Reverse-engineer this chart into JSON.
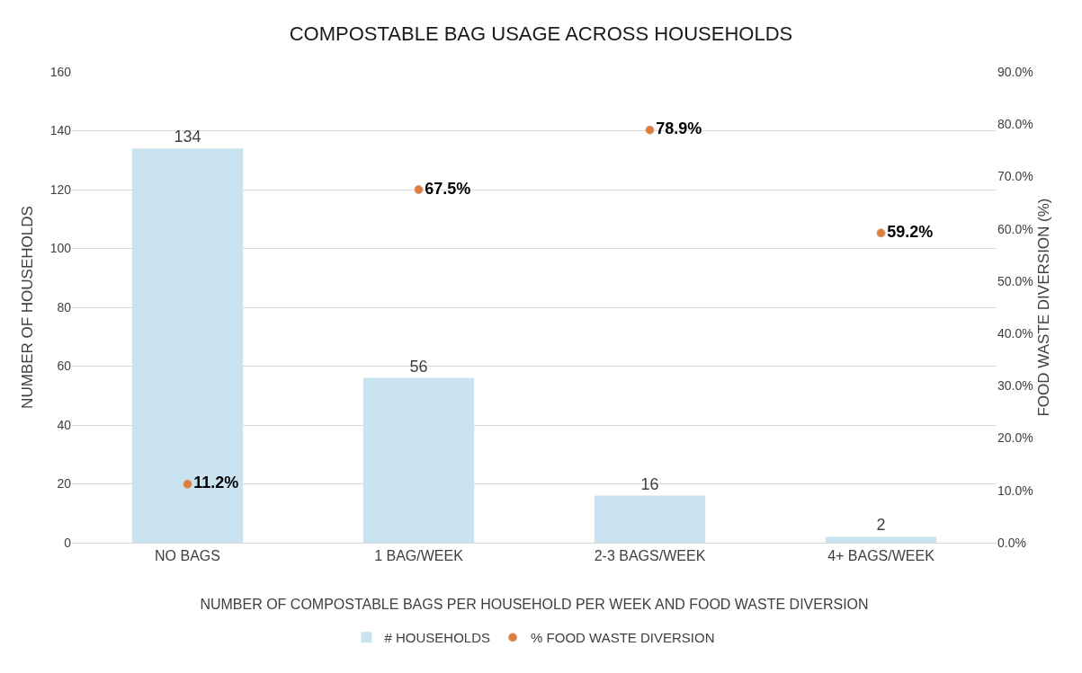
{
  "chart_data": {
    "type": "bar",
    "title": "COMPOSTABLE BAG USAGE ACROSS HOUSEHOLDS",
    "xlabel": "NUMBER OF COMPOSTABLE BAGS PER HOUSEHOLD PER WEEK AND FOOD WASTE DIVERSION",
    "ylabel": "NUMBER OF HOUSEHOLDS",
    "y2label": "FOOD WASTE DIVERSION (%)",
    "categories": [
      "NO BAGS",
      "1 BAG/WEEK",
      "2-3 BAGS/WEEK",
      "4+ BAGS/WEEK"
    ],
    "series": [
      {
        "name": "# HOUSEHOLDS",
        "type": "bar",
        "color": "#c9e3f0",
        "values": [
          134,
          56,
          16,
          2
        ],
        "value_labels": [
          "134",
          "56",
          "16",
          "2"
        ]
      },
      {
        "name": "% FOOD WASTE DIVERSION",
        "type": "scatter",
        "axis": "y2",
        "color": "#e07b39",
        "marker": "circle",
        "values": [
          11.2,
          67.5,
          78.9,
          59.2
        ],
        "value_labels": [
          "11.2%",
          "67.5%",
          "78.9%",
          "59.2%"
        ]
      }
    ],
    "ylim": [
      0,
      160
    ],
    "yticks": [
      0,
      20,
      40,
      60,
      80,
      100,
      120,
      140,
      160
    ],
    "y2lim": [
      0,
      90
    ],
    "y2ticks": [
      {
        "value": 0,
        "label": "0.0%"
      },
      {
        "value": 10,
        "label": "10.0%"
      },
      {
        "value": 20,
        "label": "20.0%"
      },
      {
        "value": 30,
        "label": "30.0%"
      },
      {
        "value": 40,
        "label": "40.0%"
      },
      {
        "value": 50,
        "label": "50.0%"
      },
      {
        "value": 60,
        "label": "60.0%"
      },
      {
        "value": 70,
        "label": "70.0%"
      },
      {
        "value": 80,
        "label": "80.0%"
      },
      {
        "value": 90,
        "label": "90.0%"
      }
    ],
    "grid": "y",
    "legend": "bottom"
  }
}
